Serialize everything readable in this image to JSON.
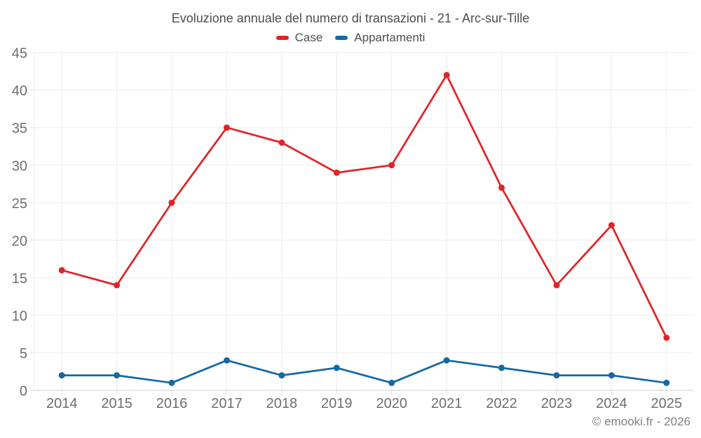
{
  "page": {
    "footer": "© emooki.fr - 2026"
  },
  "legend": {
    "items": [
      {
        "label": "Case",
        "color": "#e02428"
      },
      {
        "label": "Appartamenti",
        "color": "#1569a2"
      }
    ]
  },
  "chart_data": {
    "type": "line",
    "title": "Evoluzione annuale del numero di transazioni - 21 - Arc-sur-Tille",
    "categories": [
      "2014",
      "2015",
      "2016",
      "2017",
      "2018",
      "2019",
      "2020",
      "2021",
      "2022",
      "2023",
      "2024",
      "2025"
    ],
    "series": [
      {
        "name": "Case",
        "color": "#e02428",
        "values": [
          16,
          14,
          25,
          35,
          33,
          29,
          30,
          42,
          27,
          14,
          22,
          7
        ]
      },
      {
        "name": "Appartamenti",
        "color": "#1569a2",
        "values": [
          2,
          2,
          1,
          4,
          2,
          3,
          1,
          4,
          3,
          2,
          2,
          1
        ]
      }
    ],
    "xlabel": "",
    "ylabel": "",
    "ylim": [
      0,
      45
    ],
    "yticks": [
      0,
      5,
      10,
      15,
      20,
      25,
      30,
      35,
      40,
      45
    ],
    "grid": true,
    "legend_position": "top",
    "marker": "circle"
  },
  "colors": {
    "grid": "#ececec",
    "axis": "#cccccc",
    "tick": "#e0e0e0",
    "tick_label": "#6e6e6e",
    "title_text": "#4d4d4d"
  }
}
